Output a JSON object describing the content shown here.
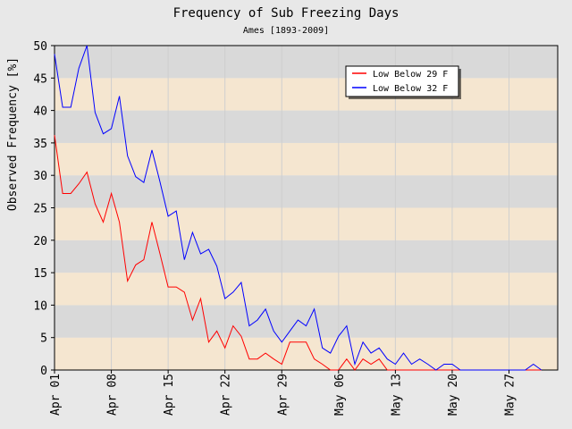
{
  "chart_data": {
    "type": "line",
    "title": "Frequency of Sub Freezing Days",
    "subtitle": "Ames [1893-2009]",
    "xlabel": "",
    "ylabel": "Observed Frequency [%]",
    "ylim": [
      0,
      50
    ],
    "yticks": [
      0,
      5,
      10,
      15,
      20,
      25,
      30,
      35,
      40,
      45,
      50
    ],
    "xlim": [
      0,
      62
    ],
    "xticks": [
      {
        "x": 0,
        "label": "Apr 01"
      },
      {
        "x": 7,
        "label": "Apr 08"
      },
      {
        "x": 14,
        "label": "Apr 15"
      },
      {
        "x": 21,
        "label": "Apr 22"
      },
      {
        "x": 28,
        "label": "Apr 29"
      },
      {
        "x": 35,
        "label": "May 06"
      },
      {
        "x": 42,
        "label": "May 13"
      },
      {
        "x": 49,
        "label": "May 20"
      },
      {
        "x": 56,
        "label": "May 27"
      }
    ],
    "legend_position": "top-right",
    "band_colors": [
      "#f5e6d0",
      "#d9d9d9"
    ],
    "series": [
      {
        "name": "Low Below 29 F",
        "color": "#ff0000",
        "values": [
          36.2,
          27.2,
          27.2,
          28.7,
          30.5,
          25.6,
          22.8,
          27.2,
          22.8,
          13.7,
          16.2,
          17.0,
          22.8,
          17.9,
          12.8,
          12.8,
          12.0,
          7.7,
          11.0,
          4.3,
          6.0,
          3.4,
          6.8,
          5.2,
          1.7,
          1.7,
          2.6,
          1.7,
          0.9,
          4.3,
          4.3,
          4.3,
          1.7,
          0.9,
          0,
          0,
          1.7,
          0,
          1.7,
          0.9,
          1.7,
          0,
          0,
          0,
          0,
          0,
          0,
          0,
          0,
          0,
          0,
          0,
          0,
          0,
          0,
          0,
          0,
          0,
          0,
          0,
          0
        ]
      },
      {
        "name": "Low Below 32 F",
        "color": "#0000ff",
        "values": [
          48.7,
          40.5,
          40.5,
          46.5,
          50.0,
          39.7,
          36.4,
          37.2,
          42.2,
          33.0,
          29.8,
          28.9,
          33.9,
          29.0,
          23.7,
          24.5,
          17.0,
          21.2,
          17.9,
          18.6,
          16.0,
          11.0,
          12.0,
          13.5,
          6.8,
          7.7,
          9.4,
          6.0,
          4.3,
          6.0,
          7.7,
          6.8,
          9.4,
          3.4,
          2.6,
          5.2,
          6.8,
          0.9,
          4.3,
          2.6,
          3.4,
          1.7,
          0.9,
          2.6,
          0.9,
          1.7,
          0.9,
          0,
          0.9,
          0.9,
          0,
          0,
          0,
          0,
          0,
          0,
          0,
          0,
          0,
          0.9,
          0
        ]
      }
    ]
  }
}
